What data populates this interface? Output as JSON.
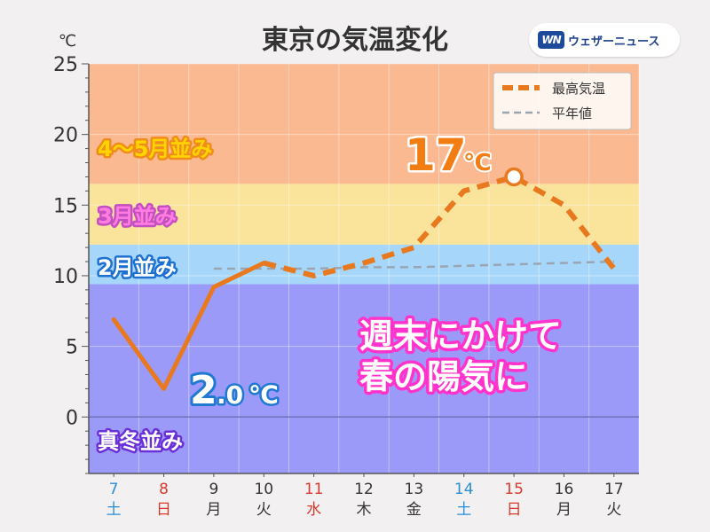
{
  "chart_data": {
    "type": "line",
    "title": "東京の気温変化",
    "unit": "℃",
    "ylim": [
      -4,
      25
    ],
    "yticks": [
      0,
      5,
      10,
      15,
      20,
      25
    ],
    "grid": true,
    "legend_position": "top-right",
    "x": [
      {
        "day": "7",
        "weekday": "土",
        "color": "#2a8fd6"
      },
      {
        "day": "8",
        "weekday": "日",
        "color": "#d83a2e"
      },
      {
        "day": "9",
        "weekday": "月",
        "color": "#333333"
      },
      {
        "day": "10",
        "weekday": "火",
        "color": "#333333"
      },
      {
        "day": "11",
        "weekday": "水",
        "color": "#d83a2e"
      },
      {
        "day": "12",
        "weekday": "木",
        "color": "#333333"
      },
      {
        "day": "13",
        "weekday": "金",
        "color": "#333333"
      },
      {
        "day": "14",
        "weekday": "土",
        "color": "#2a8fd6"
      },
      {
        "day": "15",
        "weekday": "日",
        "color": "#d83a2e"
      },
      {
        "day": "16",
        "weekday": "月",
        "color": "#333333"
      },
      {
        "day": "17",
        "weekday": "火",
        "color": "#333333"
      }
    ],
    "series": [
      {
        "name": "最高気温",
        "color": "#e8791e",
        "observed_until": 3,
        "values": [
          6.9,
          2.0,
          9.2,
          10.9,
          10.0,
          10.9,
          12.0,
          16.0,
          17.0,
          15.0,
          10.5
        ]
      },
      {
        "name": "平年値",
        "color": "#9aa5b3",
        "values": [
          10.5,
          10.5,
          10.5,
          10.5,
          10.5,
          10.6,
          10.6,
          10.7,
          10.8,
          10.9,
          11.0
        ]
      }
    ],
    "bands": [
      {
        "label": "4〜5月並み",
        "from": 16.5,
        "to": 25,
        "color": "#fbb992",
        "text_color": "#ffd400",
        "outline": "#f08c1c"
      },
      {
        "label": "3月並み",
        "from": 12.2,
        "to": 16.5,
        "color": "#fae39b",
        "text_color": "#ff7de0",
        "outline": "#c44fc1"
      },
      {
        "label": "2月並み",
        "from": 9.4,
        "to": 12.2,
        "color": "#a6d7fb",
        "text_color": "#ffffff",
        "outline": "#1e70d0"
      },
      {
        "label": "真冬並み",
        "from": -4,
        "to": 9.4,
        "color": "#9b9af9",
        "text_color": "#ffffff",
        "outline": "#6a2fd6"
      }
    ],
    "annotations": {
      "max": {
        "value": "17",
        "unit": "℃",
        "color": "#f27d13"
      },
      "min": {
        "value": "2",
        "decimal": ".0",
        "unit": "℃",
        "color": "#ffffff",
        "outline": "#1f78d1"
      },
      "message_lines": [
        "週末にかけて",
        "春の陽気に"
      ],
      "message_color": "#ffffff",
      "message_outline": "#ff33cc"
    }
  },
  "brand": {
    "logo": "WN",
    "name": "ウェザーニュース"
  }
}
